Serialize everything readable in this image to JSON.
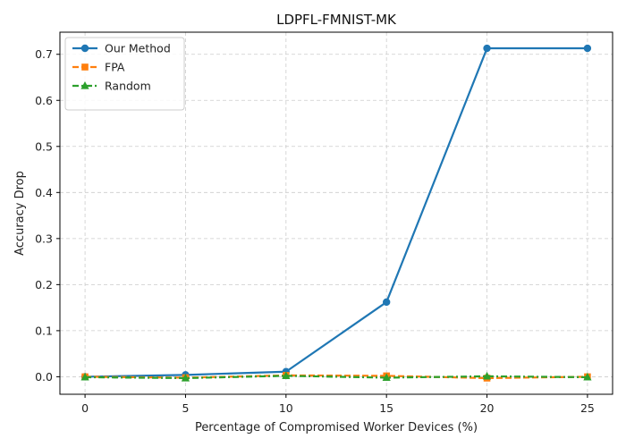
{
  "chart_data": {
    "type": "line",
    "title": "LDPFL-FMNIST-MK",
    "xlabel": "Percentage of Compromised Worker Devices (%)",
    "ylabel": "Accuracy Drop",
    "x": [
      0,
      5,
      10,
      15,
      20,
      25
    ],
    "xticks": [
      0,
      5,
      10,
      15,
      20,
      25
    ],
    "yticks": [
      0.0,
      0.1,
      0.2,
      0.3,
      0.4,
      0.5,
      0.6,
      0.7
    ],
    "xlim": [
      -1.25,
      26.25
    ],
    "ylim": [
      -0.038,
      0.748
    ],
    "grid": true,
    "legend_position": "top-left",
    "series": [
      {
        "name": "Our Method",
        "values": [
          0.0,
          0.004,
          0.011,
          0.162,
          0.713,
          0.713
        ],
        "color": "#1f77b4",
        "marker": "circle",
        "linestyle": "solid"
      },
      {
        "name": "FPA",
        "values": [
          0.0,
          -0.002,
          0.003,
          0.002,
          -0.003,
          0.0
        ],
        "color": "#ff7f0e",
        "marker": "square",
        "linestyle": "dashed"
      },
      {
        "name": "Random",
        "values": [
          -0.001,
          -0.003,
          0.002,
          -0.002,
          0.001,
          -0.001
        ],
        "color": "#2ca02c",
        "marker": "triangle",
        "linestyle": "dashdot"
      }
    ]
  }
}
